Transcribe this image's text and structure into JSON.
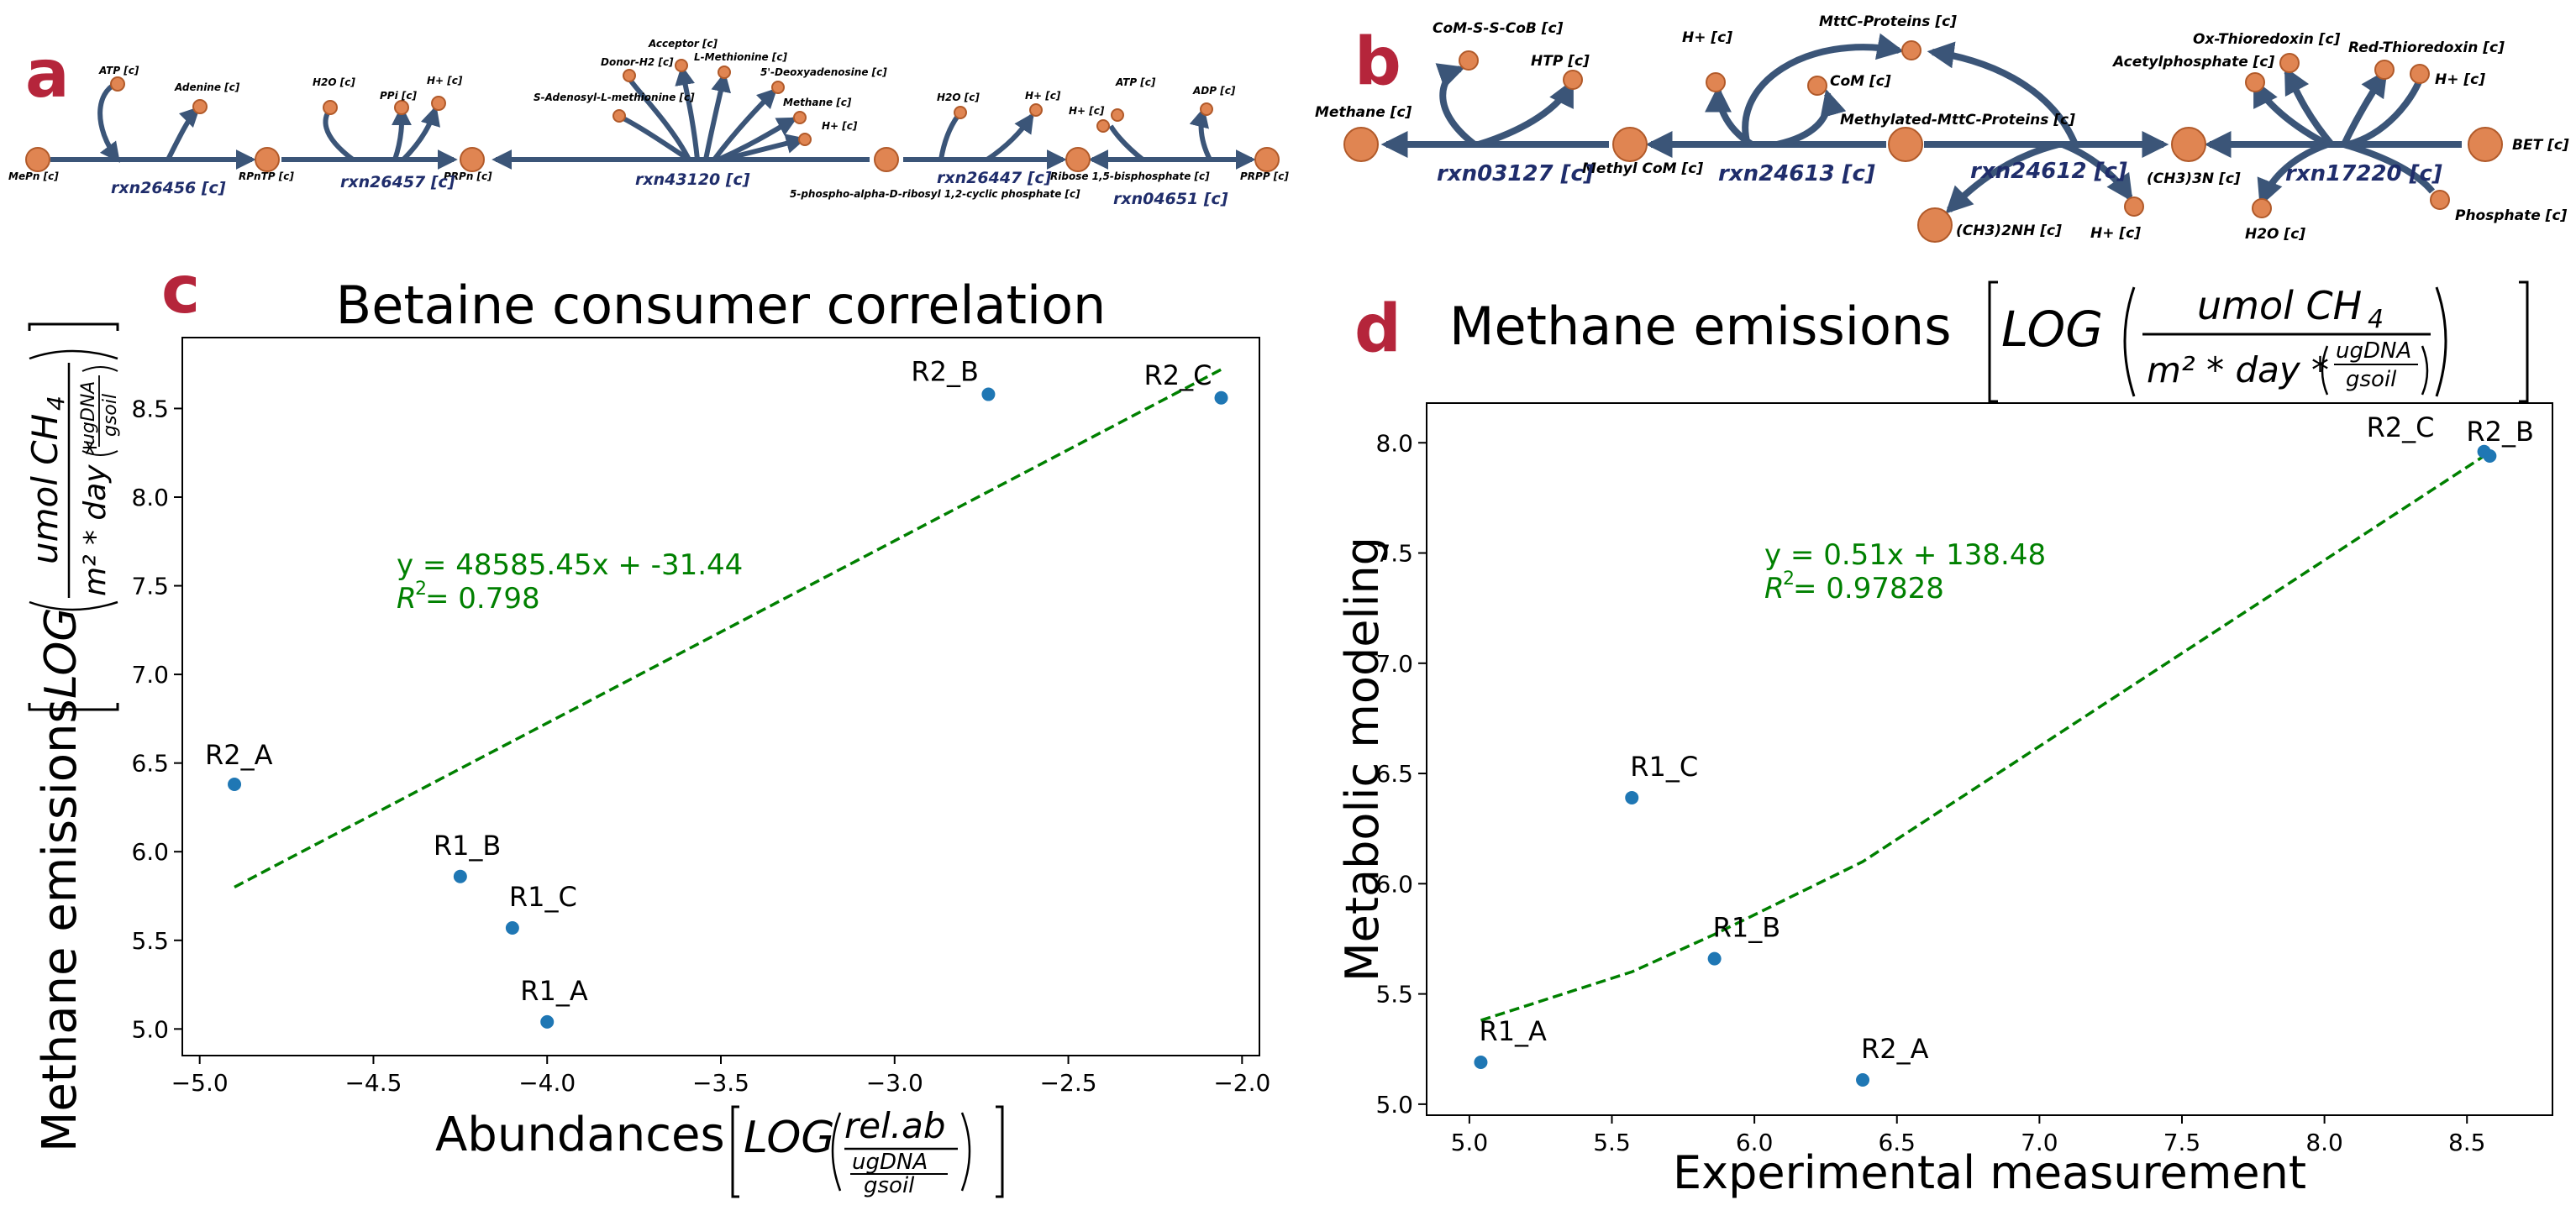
{
  "panels": {
    "a": {
      "letter": "a",
      "reactions": [
        "rxn26456 [c]",
        "rxn26457 [c]",
        "rxn43120 [c]",
        "rxn26447 [c]",
        "rxn04651 [c]"
      ],
      "main_nodes": [
        "MePn [c]",
        "RPnTP [c]",
        "PRPn [c]",
        "5-phospho-alpha-D-ribosyl 1,2-cyclic phosphate [c]",
        "Ribose 1,5-bisphosphate [c]",
        "PRPP [c]"
      ],
      "side_nodes": [
        "ATP [c]",
        "Adenine [c]",
        "H2O [c]",
        "PPi [c]",
        "H+ [c]",
        "S-Adenosyl-L-methionine [c]",
        "Donor-H2 [c]",
        "Acceptor [c]",
        "L-Methionine [c]",
        "5'-Deoxyadenosine [c]",
        "Methane [c]",
        "H+ [c]",
        "H2O [c]",
        "H+ [c]",
        "H+ [c]",
        "ATP [c]",
        "ADP [c]"
      ]
    },
    "b": {
      "letter": "b",
      "reactions": [
        "rxn03127 [c]",
        "rxn24613 [c]",
        "rxn24612 [c]",
        "rxn17220 [c]"
      ],
      "main_nodes": [
        "Methane [c]",
        "Methyl CoM [c]",
        "Methylated-MttC-Proteins [c]",
        "(CH3)3N [c]",
        "BET [c]"
      ],
      "side_nodes": [
        "CoM-S-S-CoB [c]",
        "HTP [c]",
        "H+ [c]",
        "CoM [c]",
        "MttC-Proteins [c]",
        "(CH3)2NH [c]",
        "H+ [c]",
        "Acetylphosphate [c]",
        "Ox-Thioredoxin [c]",
        "Red-Thioredoxin [c]",
        "H+ [c]",
        "H2O [c]",
        "Phosphate [c]"
      ]
    },
    "c": {
      "letter": "c",
      "title": "Betaine consumer correlation",
      "xlabel_main": "Abundances",
      "xlabel_math": {
        "log": "LOG",
        "num": "rel.ab",
        "sub_num": "ugDNA",
        "sub_den": "gsoil"
      },
      "ylabel_main": "Methane emissions",
      "ylabel_math": {
        "log": "LOG",
        "num": "umol  CH",
        "num_sub": "4",
        "den": "m² * day *",
        "sub_num": "ugDNA",
        "sub_den": "gsoil"
      },
      "equation": "y = 48585.45x + -31.44",
      "r2_label": "R",
      "r2_value": " = 0.798"
    },
    "d": {
      "letter": "d",
      "title_main": "Methane emissions",
      "title_math": {
        "log": "LOG",
        "num": "umol  CH",
        "num_sub": "4",
        "den": "m² * day *",
        "sub_num": "ugDNA",
        "sub_den": "gsoil"
      },
      "xlabel": "Experimental measurement",
      "ylabel": "Metabolic modeling",
      "equation": "y = 0.51x + 138.48",
      "r2_label": "R",
      "r2_value": " = 0.97828"
    }
  },
  "chart_data": [
    {
      "type": "scatter",
      "title": "Betaine consumer correlation",
      "xlabel": "Abundances [LOG(rel.ab / (ugDNA/gsoil))]",
      "ylabel": "Methane emissions [LOG(umol CH4 / (m2*day*(ugDNA/gsoil))))]",
      "xlim": [
        -5.05,
        -1.95
      ],
      "ylim": [
        4.85,
        8.9
      ],
      "xticks": [
        -5.0,
        -4.5,
        -4.0,
        -3.5,
        -3.0,
        -2.5,
        -2.0
      ],
      "yticks": [
        5.0,
        5.5,
        6.0,
        6.5,
        7.0,
        7.5,
        8.0,
        8.5
      ],
      "points": [
        {
          "label": "R2_A",
          "x": -4.9,
          "y": 6.38
        },
        {
          "label": "R1_B",
          "x": -4.25,
          "y": 5.86
        },
        {
          "label": "R1_C",
          "x": -4.1,
          "y": 5.57
        },
        {
          "label": "R1_A",
          "x": -4.0,
          "y": 5.04
        },
        {
          "label": "R2_B",
          "x": -2.73,
          "y": 8.58
        },
        {
          "label": "R2_C",
          "x": -2.06,
          "y": 8.56
        }
      ],
      "trendline": [
        {
          "x": -4.9,
          "y": 5.8
        },
        {
          "x": -2.06,
          "y": 8.72
        }
      ],
      "grid": false
    },
    {
      "type": "scatter",
      "title": "Methane emissions [LOG(umol CH4 / (m2*day*(ugDNA/gsoil))))]",
      "xlabel": "Experimental measurement",
      "ylabel": "Metabolic modeling",
      "xlim": [
        4.85,
        8.8
      ],
      "ylim": [
        4.95,
        8.18
      ],
      "xticks": [
        5.0,
        5.5,
        6.0,
        6.5,
        7.0,
        7.5,
        8.0,
        8.5
      ],
      "yticks": [
        5.0,
        5.5,
        6.0,
        6.5,
        7.0,
        7.5,
        8.0
      ],
      "points": [
        {
          "label": "R1_A",
          "x": 5.04,
          "y": 5.19
        },
        {
          "label": "R1_C",
          "x": 5.57,
          "y": 6.39
        },
        {
          "label": "R1_B",
          "x": 5.86,
          "y": 5.66
        },
        {
          "label": "R2_A",
          "x": 6.38,
          "y": 5.11
        },
        {
          "label": "R2_C",
          "x": 8.56,
          "y": 7.96
        },
        {
          "label": "R2_B",
          "x": 8.58,
          "y": 7.94
        }
      ],
      "trendline": [
        {
          "x": 5.04,
          "y": 5.38
        },
        {
          "x": 5.57,
          "y": 5.6
        },
        {
          "x": 5.86,
          "y": 5.77
        },
        {
          "x": 6.38,
          "y": 6.1
        },
        {
          "x": 8.56,
          "y": 7.94
        },
        {
          "x": 8.58,
          "y": 7.96
        }
      ],
      "grid": false
    }
  ],
  "colors": {
    "point": "#1f77b4",
    "trend": "#008000",
    "letter": "#b5253b",
    "arrow": "#3b5578",
    "node": "#e08552",
    "node_stroke": "#b15a2a",
    "rxn_text": "#1f2d6b"
  }
}
